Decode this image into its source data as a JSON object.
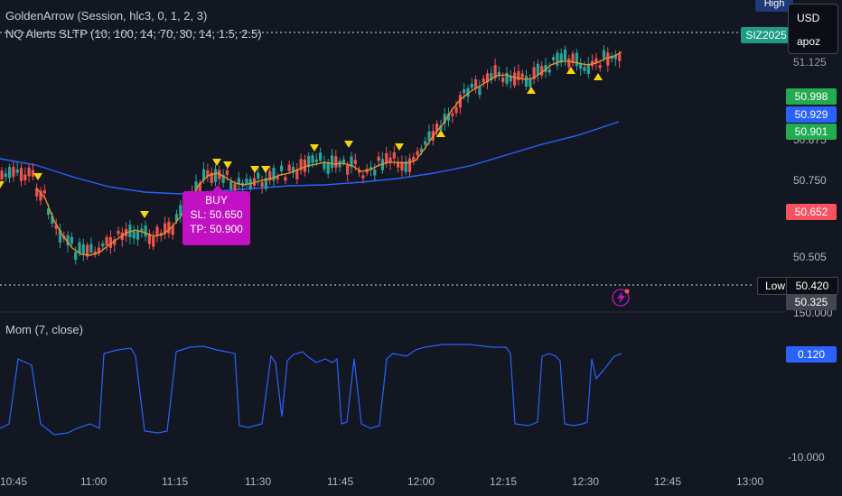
{
  "legend": {
    "indicator1": "GoldenArrow (Session, hlc3, 0, 1, 2, 3)",
    "indicator2": "NQ Alerts SLTP (10, 100, 14, 70, 30, 14, 1.5, 2.5)",
    "momentum": "Mom (7, close)"
  },
  "currency_box": {
    "currency": "USD",
    "user": "apoz"
  },
  "tags": {
    "high": "High",
    "symbol": "SIZ2025",
    "price_top_clipped": "51.125",
    "green1": "50.998",
    "blue": "50.929",
    "green2": "50.901",
    "red": "50.652",
    "low_label": "Low",
    "low_value": "50.420",
    "dark": "50.325",
    "mom_value": "0.120",
    "mom_top_clipped": "150.000"
  },
  "price_axis": [
    "50.875",
    "50.750",
    "50.505"
  ],
  "mom_axis": [
    "-10.000"
  ],
  "time_axis": [
    "10:45",
    "11:00",
    "11:15",
    "11:30",
    "11:45",
    "12:00",
    "12:15",
    "12:30",
    "12:45",
    "13:00"
  ],
  "buy_signal": {
    "title": "BUY",
    "sl": "SL: 50.650",
    "tp": "TP: 50.900"
  },
  "colors": {
    "background": "#131722",
    "bull": "#26a69a",
    "bear": "#ef5350",
    "ema": "#f0932b",
    "sma": "#2962ff",
    "momentum": "#2962ff",
    "arrow": "#f5d60a",
    "buy_box": "#c211c2",
    "green_tag": "#22ab4f",
    "blue_tag": "#2962ff",
    "red_tag": "#f7525f",
    "symbol_tag": "#1d9b83"
  }
}
